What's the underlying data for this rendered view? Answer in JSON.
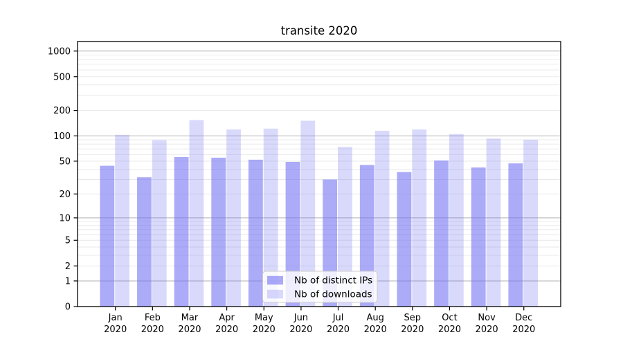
{
  "title": "transite 2020",
  "colors": {
    "ips_bar": "rgba(115,115,243,0.60)",
    "downloads_bar": "rgba(115,115,243,0.27)",
    "grid_major": "#b0b0b0",
    "grid_minor": "#e7e7e7",
    "axis": "#000000",
    "tick_text": "#000000",
    "legend_bg": "rgba(255,255,255,0.8)",
    "legend_border": "#cccccc",
    "background": "#ffffff"
  },
  "legend": {
    "entries": [
      {
        "label": "Nb of distinct IPs",
        "swatch": "ips-swatch"
      },
      {
        "label": "Nb of downloads",
        "swatch": "downloads-swatch"
      }
    ]
  },
  "chart_data": {
    "type": "bar",
    "title": "transite 2020",
    "categories": [
      "Jan 2020",
      "Feb 2020",
      "Mar 2020",
      "Apr 2020",
      "May 2020",
      "Jun 2020",
      "Jul 2020",
      "Aug 2020",
      "Sep 2020",
      "Oct 2020",
      "Nov 2020",
      "Dec 2020"
    ],
    "series": [
      {
        "name": "Nb of distinct IPs",
        "values": [
          44,
          32,
          56,
          55,
          52,
          49,
          30,
          45,
          37,
          51,
          42,
          47
        ]
      },
      {
        "name": "Nb of downloads",
        "values": [
          103,
          89,
          154,
          119,
          122,
          151,
          74,
          115,
          119,
          105,
          93,
          90
        ]
      }
    ],
    "xlabel": "",
    "ylabel": "",
    "yscale": "log1p",
    "yticks": [
      0,
      1,
      2,
      5,
      10,
      20,
      50,
      100,
      200,
      500,
      1000
    ],
    "minor_grid_values": [
      2,
      3,
      4,
      5,
      6,
      7,
      8,
      9,
      20,
      30,
      40,
      50,
      60,
      70,
      80,
      90,
      200,
      300,
      400,
      500,
      600,
      700,
      800,
      900
    ],
    "major_grid_values": [
      1,
      10,
      100,
      1000
    ],
    "ylim": [
      0,
      1250
    ],
    "grid": true,
    "legend_position": "lower center"
  }
}
